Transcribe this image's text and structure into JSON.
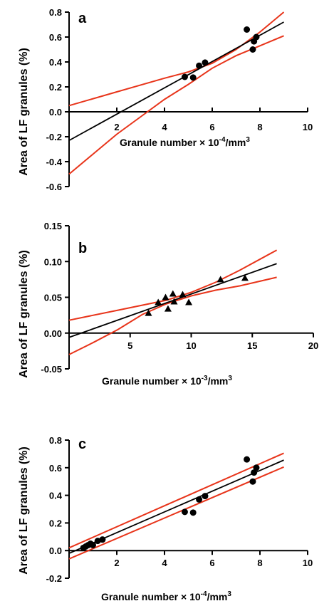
{
  "colors": {
    "fit_line": "#000000",
    "band_line": "#e8341a",
    "axis": "#000000",
    "points": "#000000"
  },
  "chart_data": [
    {
      "panel": "a",
      "type": "scatter",
      "marker": "circle",
      "xlabel": "Granule number × 10",
      "xlabel_exp": "-4",
      "xlabel_unit": "/mm",
      "xlabel_unit_exp": "3",
      "ylabel": "Area of LF granules (%)",
      "xlim": [
        0,
        10
      ],
      "ylim": [
        -0.6,
        0.8
      ],
      "xticks": [
        2,
        4,
        6,
        8,
        10
      ],
      "xtick_labels": [
        "2",
        "4",
        "6",
        "8",
        "10"
      ],
      "yticks": [
        -0.6,
        -0.4,
        -0.2,
        0.0,
        0.2,
        0.4,
        0.6,
        0.8
      ],
      "ytick_labels": [
        "-0.6",
        "-0.4",
        "-0.2",
        "0.0",
        "0.2",
        "0.4",
        "0.6",
        "0.8"
      ],
      "points": [
        [
          4.85,
          0.28
        ],
        [
          5.2,
          0.275
        ],
        [
          5.45,
          0.37
        ],
        [
          5.7,
          0.395
        ],
        [
          7.45,
          0.66
        ],
        [
          7.7,
          0.5
        ],
        [
          7.75,
          0.565
        ],
        [
          7.85,
          0.6
        ]
      ],
      "fit_line": [
        [
          0,
          -0.23
        ],
        [
          9,
          0.72
        ]
      ],
      "upper_band": [
        [
          0,
          0.05
        ],
        [
          2,
          0.16
        ],
        [
          4,
          0.27
        ],
        [
          5,
          0.32
        ],
        [
          6,
          0.39
        ],
        [
          7,
          0.5
        ],
        [
          8,
          0.64
        ],
        [
          9,
          0.8
        ]
      ],
      "lower_band": [
        [
          0,
          -0.5
        ],
        [
          1,
          -0.34
        ],
        [
          2,
          -0.18
        ],
        [
          3,
          -0.04
        ],
        [
          4,
          0.1
        ],
        [
          5,
          0.22
        ],
        [
          6,
          0.35
        ],
        [
          7,
          0.45
        ],
        [
          8,
          0.53
        ],
        [
          9,
          0.61
        ]
      ]
    },
    {
      "panel": "b",
      "type": "scatter",
      "marker": "triangle",
      "xlabel": "Granule number × 10",
      "xlabel_exp": "-3",
      "xlabel_unit": "/mm",
      "xlabel_unit_exp": "3",
      "ylabel": "Area of LF granules (%)",
      "xlim": [
        0,
        20
      ],
      "ylim": [
        -0.05,
        0.15
      ],
      "xticks": [
        5,
        10,
        15,
        20
      ],
      "xtick_labels": [
        "5",
        "10",
        "15",
        "20"
      ],
      "yticks": [
        -0.05,
        0.0,
        0.05,
        0.1,
        0.15
      ],
      "ytick_labels": [
        "-0.05",
        "0.00",
        "0.05",
        "0.10",
        "0.15"
      ],
      "points": [
        [
          6.5,
          0.028
        ],
        [
          7.3,
          0.043
        ],
        [
          7.9,
          0.05
        ],
        [
          8.1,
          0.034
        ],
        [
          8.5,
          0.055
        ],
        [
          8.6,
          0.044
        ],
        [
          9.3,
          0.054
        ],
        [
          9.8,
          0.043
        ],
        [
          12.4,
          0.075
        ],
        [
          14.4,
          0.077
        ]
      ],
      "fit_line": [
        [
          0,
          -0.006
        ],
        [
          17,
          0.097
        ]
      ],
      "upper_band": [
        [
          0,
          0.018
        ],
        [
          4,
          0.032
        ],
        [
          8,
          0.046
        ],
        [
          10,
          0.057
        ],
        [
          12,
          0.071
        ],
        [
          14,
          0.088
        ],
        [
          17,
          0.116
        ]
      ],
      "lower_band": [
        [
          0,
          -0.03
        ],
        [
          2,
          -0.013
        ],
        [
          4,
          0.005
        ],
        [
          6,
          0.026
        ],
        [
          8,
          0.041
        ],
        [
          10,
          0.052
        ],
        [
          12,
          0.06
        ],
        [
          14,
          0.066
        ],
        [
          17,
          0.078
        ]
      ]
    },
    {
      "panel": "c",
      "type": "scatter",
      "marker": "circle",
      "xlabel": "Granule number × 10",
      "xlabel_exp": "-4",
      "xlabel_unit": "/mm",
      "xlabel_unit_exp": "3",
      "ylabel": "Area of LF granules (%)",
      "xlim": [
        0,
        10
      ],
      "ylim": [
        -0.2,
        0.8
      ],
      "xticks": [
        2,
        4,
        6,
        8,
        10
      ],
      "xtick_labels": [
        "2",
        "4",
        "6",
        "8",
        "10"
      ],
      "yticks": [
        -0.2,
        0.0,
        0.2,
        0.4,
        0.6,
        0.8
      ],
      "ytick_labels": [
        "-0.2",
        "0.0",
        "0.2",
        "0.4",
        "0.6",
        "0.8"
      ],
      "points": [
        [
          0.6,
          0.02
        ],
        [
          0.7,
          0.03
        ],
        [
          0.8,
          0.04
        ],
        [
          0.9,
          0.05
        ],
        [
          1.0,
          0.04
        ],
        [
          1.2,
          0.07
        ],
        [
          1.4,
          0.08
        ],
        [
          4.85,
          0.28
        ],
        [
          5.2,
          0.275
        ],
        [
          5.45,
          0.37
        ],
        [
          5.7,
          0.395
        ],
        [
          7.45,
          0.66
        ],
        [
          7.7,
          0.5
        ],
        [
          7.75,
          0.565
        ],
        [
          7.85,
          0.6
        ]
      ],
      "fit_line": [
        [
          0,
          -0.02
        ],
        [
          9,
          0.655
        ]
      ],
      "upper_band": [
        [
          0,
          0.02
        ],
        [
          9,
          0.705
        ]
      ],
      "lower_band": [
        [
          0,
          -0.06
        ],
        [
          9,
          0.605
        ]
      ]
    }
  ]
}
